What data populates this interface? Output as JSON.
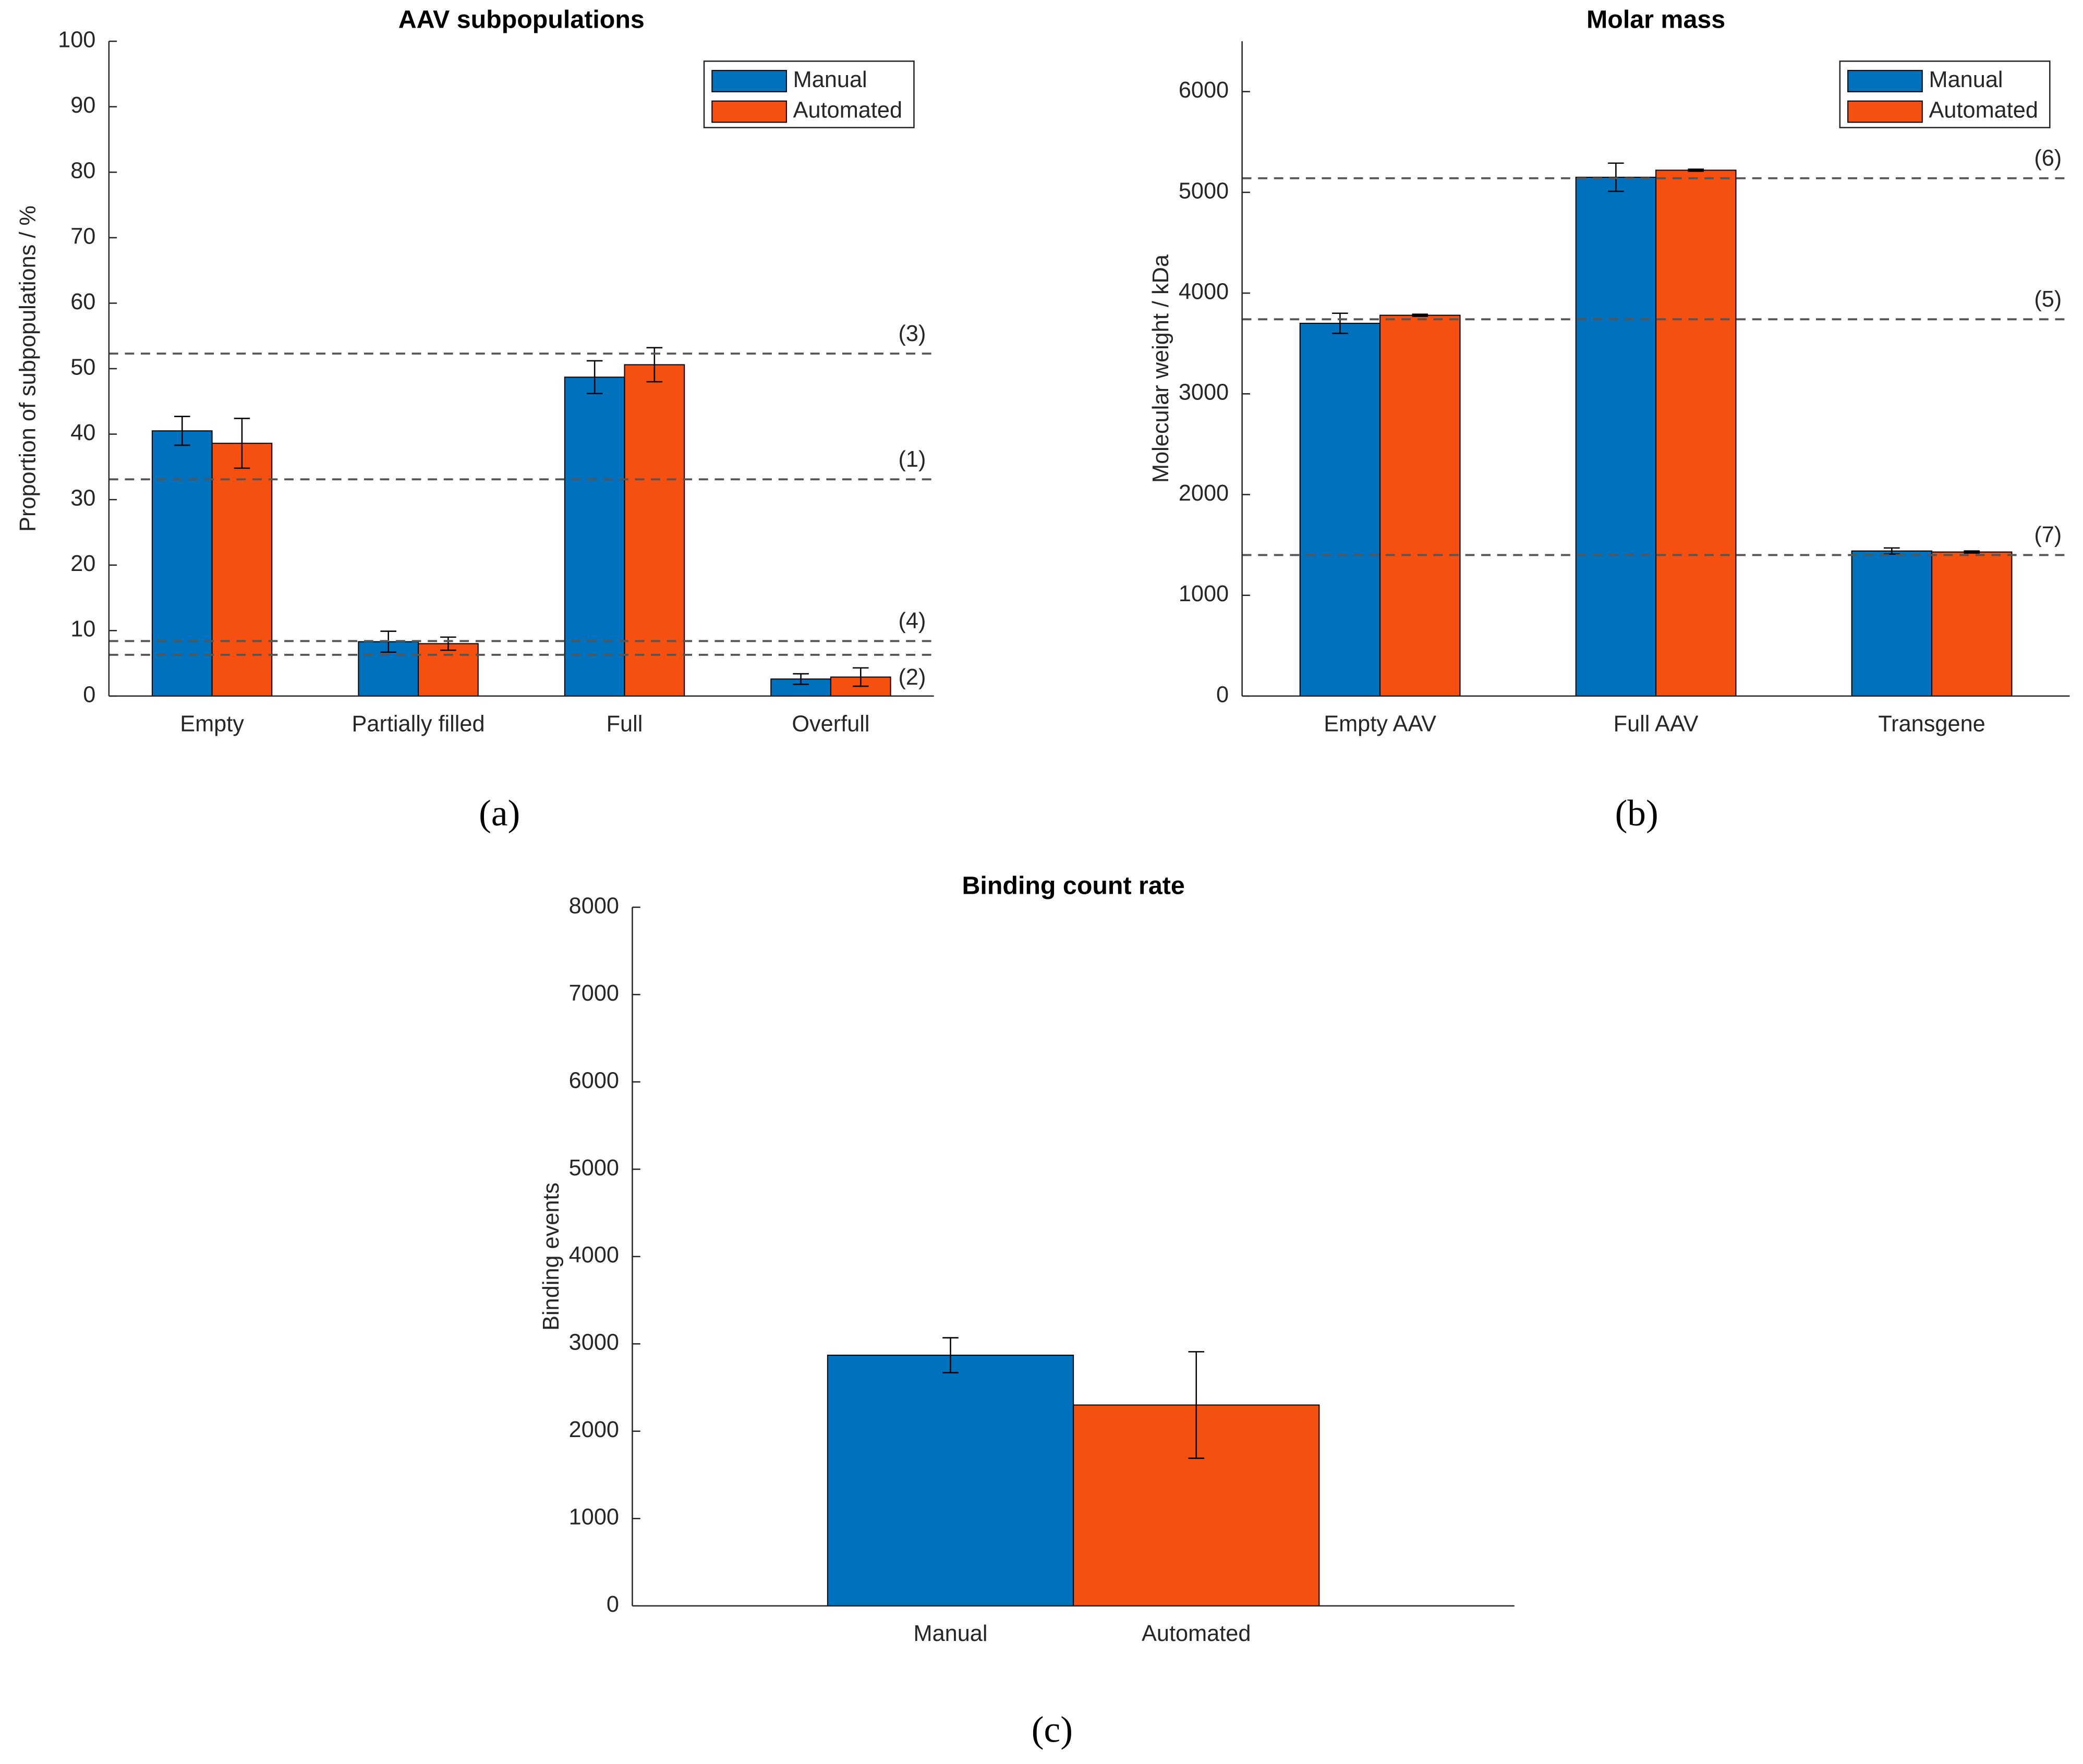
{
  "chart_data": [
    {
      "type": "bar",
      "title": "AAV subpopulations",
      "ylabel": "Proportion of subpopulations / %",
      "caption": "(a)",
      "categories": [
        "Empty",
        "Partially filled",
        "Full",
        "Overfull"
      ],
      "series": [
        {
          "name": "Manual",
          "color": "#0072bd",
          "values": [
            40.5,
            8.3,
            48.7,
            2.6
          ],
          "errors": [
            2.2,
            1.6,
            2.5,
            0.8
          ]
        },
        {
          "name": "Automated",
          "color": "#f5500f",
          "values": [
            38.6,
            8.0,
            50.6,
            2.9
          ],
          "errors": [
            3.8,
            1.0,
            2.6,
            1.4
          ]
        }
      ],
      "ylim": [
        0,
        100
      ],
      "yticks": [
        0,
        10,
        20,
        30,
        40,
        50,
        60,
        70,
        80,
        90,
        100
      ],
      "reference_lines": [
        {
          "value": 52.3,
          "label": "(3)"
        },
        {
          "value": 33.1,
          "label": "(1)"
        },
        {
          "value": 8.4,
          "label": "(4)"
        },
        {
          "value": 6.3,
          "label": "(2)"
        }
      ],
      "legend": "top-right"
    },
    {
      "type": "bar",
      "title": "Molar mass",
      "ylabel": "Molecular weight / kDa",
      "caption": "(b)",
      "categories": [
        "Empty AAV",
        "Full AAV",
        "Transgene"
      ],
      "series": [
        {
          "name": "Manual",
          "color": "#0072bd",
          "values": [
            3700,
            5150,
            1440
          ],
          "errors": [
            100,
            140,
            30
          ]
        },
        {
          "name": "Automated",
          "color": "#f5500f",
          "values": [
            3780,
            5220,
            1430
          ],
          "errors": [
            10,
            10,
            10
          ]
        }
      ],
      "ylim": [
        0,
        6500
      ],
      "yticks": [
        0,
        1000,
        2000,
        3000,
        4000,
        5000,
        6000
      ],
      "reference_lines": [
        {
          "value": 5140,
          "label": "(6)"
        },
        {
          "value": 3740,
          "label": "(5)"
        },
        {
          "value": 1400,
          "label": "(7)"
        }
      ],
      "legend": "top-right"
    },
    {
      "type": "bar",
      "title": "Binding count rate",
      "ylabel": "Binding events",
      "caption": "(c)",
      "categories": [
        "Manual",
        "Automated"
      ],
      "values": [
        2870,
        2300
      ],
      "errors": [
        200,
        610
      ],
      "colors": [
        "#0072bd",
        "#f5500f"
      ],
      "ylim": [
        0,
        8000
      ],
      "yticks": [
        0,
        1000,
        2000,
        3000,
        4000,
        5000,
        6000,
        7000,
        8000
      ]
    }
  ]
}
